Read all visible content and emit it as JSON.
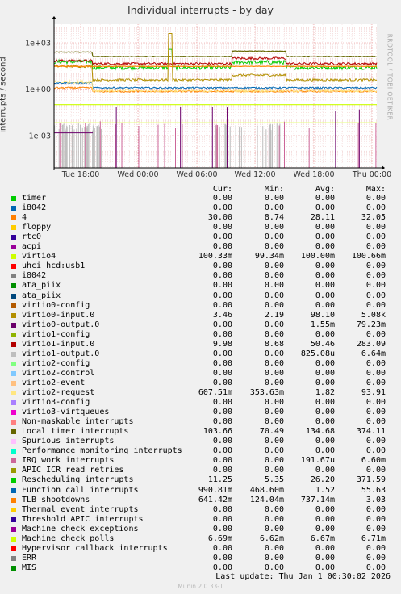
{
  "chart_data": {
    "type": "line",
    "title": "Individual interrupts - by day",
    "ylabel": "interrupts / second",
    "yscale": "log",
    "yticks": [
      "1e+03",
      "1e+00",
      "1e-03"
    ],
    "xticks": [
      "Tue 18:00",
      "Wed 00:00",
      "Wed 06:00",
      "Wed 12:00",
      "Wed 18:00",
      "Thu 00:00"
    ],
    "grid": true,
    "watermark": "RRDTOOL / TOBI OETIKER",
    "columns": [
      "Cur:",
      "Min:",
      "Avg:",
      "Max:"
    ],
    "series": [
      {
        "name": "timer",
        "color": "#00cc00",
        "cur": "0.00",
        "min": "0.00",
        "avg": "0.00",
        "max": "0.00"
      },
      {
        "name": "i8042",
        "color": "#0066b3",
        "cur": "0.00",
        "min": "0.00",
        "avg": "0.00",
        "max": "0.00"
      },
      {
        "name": "4",
        "color": "#ff8000",
        "cur": "30.00",
        "min": "8.74",
        "avg": "28.11",
        "max": "32.05"
      },
      {
        "name": "floppy",
        "color": "#ffcc00",
        "cur": "0.00",
        "min": "0.00",
        "avg": "0.00",
        "max": "0.00"
      },
      {
        "name": "rtc0",
        "color": "#330099",
        "cur": "0.00",
        "min": "0.00",
        "avg": "0.00",
        "max": "0.00"
      },
      {
        "name": "acpi",
        "color": "#990099",
        "cur": "0.00",
        "min": "0.00",
        "avg": "0.00",
        "max": "0.00"
      },
      {
        "name": "virtio4",
        "color": "#ccff00",
        "cur": "100.33m",
        "min": "99.34m",
        "avg": "100.00m",
        "max": "100.66m"
      },
      {
        "name": "uhci_hcd:usb1",
        "color": "#ff0000",
        "cur": "0.00",
        "min": "0.00",
        "avg": "0.00",
        "max": "0.00"
      },
      {
        "name": "i8042",
        "color": "#808080",
        "cur": "0.00",
        "min": "0.00",
        "avg": "0.00",
        "max": "0.00"
      },
      {
        "name": "ata_piix",
        "color": "#008f00",
        "cur": "0.00",
        "min": "0.00",
        "avg": "0.00",
        "max": "0.00"
      },
      {
        "name": "ata_piix",
        "color": "#00487d",
        "cur": "0.00",
        "min": "0.00",
        "avg": "0.00",
        "max": "0.00"
      },
      {
        "name": "virtio0-config",
        "color": "#b35a00",
        "cur": "0.00",
        "min": "0.00",
        "avg": "0.00",
        "max": "0.00"
      },
      {
        "name": "virtio0-input.0",
        "color": "#b38f00",
        "cur": "3.46",
        "min": "2.19",
        "avg": "98.10",
        "max": "5.08k"
      },
      {
        "name": "virtio0-output.0",
        "color": "#6b006b",
        "cur": "0.00",
        "min": "0.00",
        "avg": "1.55m",
        "max": "79.23m"
      },
      {
        "name": "virtio1-config",
        "color": "#8fb300",
        "cur": "0.00",
        "min": "0.00",
        "avg": "0.00",
        "max": "0.00"
      },
      {
        "name": "virtio1-input.0",
        "color": "#b30000",
        "cur": "9.98",
        "min": "8.68",
        "avg": "50.46",
        "max": "283.09"
      },
      {
        "name": "virtio1-output.0",
        "color": "#bebebe",
        "cur": "0.00",
        "min": "0.00",
        "avg": "825.08u",
        "max": "6.64m"
      },
      {
        "name": "virtio2-config",
        "color": "#80ff80",
        "cur": "0.00",
        "min": "0.00",
        "avg": "0.00",
        "max": "0.00"
      },
      {
        "name": "virtio2-control",
        "color": "#80c9ff",
        "cur": "0.00",
        "min": "0.00",
        "avg": "0.00",
        "max": "0.00"
      },
      {
        "name": "virtio2-event",
        "color": "#ffc080",
        "cur": "0.00",
        "min": "0.00",
        "avg": "0.00",
        "max": "0.00"
      },
      {
        "name": "virtio2-request",
        "color": "#ffe680",
        "cur": "607.51m",
        "min": "353.63m",
        "avg": "1.82",
        "max": "93.91"
      },
      {
        "name": "virtio3-config",
        "color": "#aa80ff",
        "cur": "0.00",
        "min": "0.00",
        "avg": "0.00",
        "max": "0.00"
      },
      {
        "name": "virtio3-virtqueues",
        "color": "#ee00cc",
        "cur": "0.00",
        "min": "0.00",
        "avg": "0.00",
        "max": "0.00"
      },
      {
        "name": "Non-maskable interrupts",
        "color": "#ff8080",
        "cur": "0.00",
        "min": "0.00",
        "avg": "0.00",
        "max": "0.00"
      },
      {
        "name": "Local timer interrupts",
        "color": "#666600",
        "cur": "103.66",
        "min": "70.49",
        "avg": "134.68",
        "max": "374.11"
      },
      {
        "name": "Spurious interrupts",
        "color": "#ffbfff",
        "cur": "0.00",
        "min": "0.00",
        "avg": "0.00",
        "max": "0.00"
      },
      {
        "name": "Performance monitoring interrupts",
        "color": "#00ffcc",
        "cur": "0.00",
        "min": "0.00",
        "avg": "0.00",
        "max": "0.00"
      },
      {
        "name": "IRQ work interrupts",
        "color": "#cc6699",
        "cur": "0.00",
        "min": "0.00",
        "avg": "191.67u",
        "max": "6.60m"
      },
      {
        "name": "APIC ICR read retries",
        "color": "#999900",
        "cur": "0.00",
        "min": "0.00",
        "avg": "0.00",
        "max": "0.00"
      },
      {
        "name": "Rescheduling interrupts",
        "color": "#00cc00",
        "cur": "11.25",
        "min": "5.35",
        "avg": "26.20",
        "max": "371.59"
      },
      {
        "name": "Function call interrupts",
        "color": "#0066b3",
        "cur": "990.81m",
        "min": "468.60m",
        "avg": "1.52",
        "max": "55.63"
      },
      {
        "name": "TLB shootdowns",
        "color": "#ff8000",
        "cur": "641.42m",
        "min": "124.04m",
        "avg": "737.14m",
        "max": "3.03"
      },
      {
        "name": "Thermal event interrupts",
        "color": "#ffcc00",
        "cur": "0.00",
        "min": "0.00",
        "avg": "0.00",
        "max": "0.00"
      },
      {
        "name": "Threshold APIC interrupts",
        "color": "#330099",
        "cur": "0.00",
        "min": "0.00",
        "avg": "0.00",
        "max": "0.00"
      },
      {
        "name": "Machine check exceptions",
        "color": "#990099",
        "cur": "0.00",
        "min": "0.00",
        "avg": "0.00",
        "max": "0.00"
      },
      {
        "name": "Machine check polls",
        "color": "#ccff00",
        "cur": "6.69m",
        "min": "6.62m",
        "avg": "6.67m",
        "max": "6.71m"
      },
      {
        "name": "Hypervisor callback interrupts",
        "color": "#ff0000",
        "cur": "0.00",
        "min": "0.00",
        "avg": "0.00",
        "max": "0.00"
      },
      {
        "name": "ERR",
        "color": "#808080",
        "cur": "0.00",
        "min": "0.00",
        "avg": "0.00",
        "max": "0.00"
      },
      {
        "name": "MIS",
        "color": "#008f00",
        "cur": "0.00",
        "min": "0.00",
        "avg": "0.00",
        "max": "0.00"
      }
    ]
  },
  "footer": {
    "last_update": "Last update:  Thu Jan  1 00:30:02 2026",
    "version": "Munin 2.0.33-1"
  }
}
